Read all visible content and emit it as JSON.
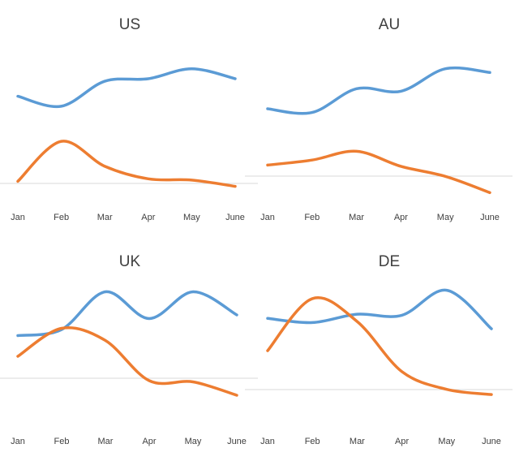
{
  "chart_data": [
    {
      "type": "line",
      "title": "US",
      "categories": [
        "Jan",
        "Feb",
        "Mar",
        "Apr",
        "May",
        "June"
      ],
      "series": [
        {
          "values": [
            6.2,
            5.4,
            7.4,
            7.6,
            8.4,
            7.6
          ]
        },
        {
          "values": [
            -0.6,
            2.6,
            0.6,
            -0.4,
            -0.5,
            -1.0
          ]
        }
      ],
      "ylim": [
        -2,
        10
      ],
      "colors": [
        "#5b9bd5",
        "#ed7d31"
      ],
      "legend": "none",
      "grid": false
    },
    {
      "type": "line",
      "title": "AU",
      "categories": [
        "Jan",
        "Feb",
        "Mar",
        "Apr",
        "May",
        "June"
      ],
      "series": [
        {
          "values": [
            5.2,
            4.9,
            6.8,
            6.6,
            8.4,
            8.1
          ]
        },
        {
          "values": [
            0.7,
            1.1,
            1.8,
            0.6,
            -0.2,
            -1.5
          ]
        }
      ],
      "ylim": [
        -2,
        10
      ],
      "colors": [
        "#5b9bd5",
        "#ed7d31"
      ],
      "legend": "none",
      "grid": false
    },
    {
      "type": "line",
      "title": "UK",
      "categories": [
        "Jan",
        "Feb",
        "Mar",
        "Apr",
        "May",
        "June"
      ],
      "series": [
        {
          "values": [
            2.9,
            3.4,
            6.5,
            4.3,
            6.5,
            4.6
          ]
        },
        {
          "values": [
            1.2,
            3.5,
            2.5,
            -0.8,
            -0.9,
            -2.0
          ]
        }
      ],
      "ylim": [
        -4,
        8
      ],
      "colors": [
        "#5b9bd5",
        "#ed7d31"
      ],
      "legend": "none",
      "grid": false
    },
    {
      "type": "line",
      "title": "DE",
      "categories": [
        "Jan",
        "Feb",
        "Mar",
        "Apr",
        "May",
        "June"
      ],
      "series": [
        {
          "values": [
            5.7,
            5.3,
            6.1,
            6.0,
            8.4,
            4.7
          ]
        },
        {
          "values": [
            2.6,
            7.6,
            5.4,
            0.6,
            -1.1,
            -1.6
          ]
        }
      ],
      "ylim": [
        -4,
        10
      ],
      "colors": [
        "#5b9bd5",
        "#ed7d31"
      ],
      "legend": "none",
      "grid": false
    }
  ]
}
